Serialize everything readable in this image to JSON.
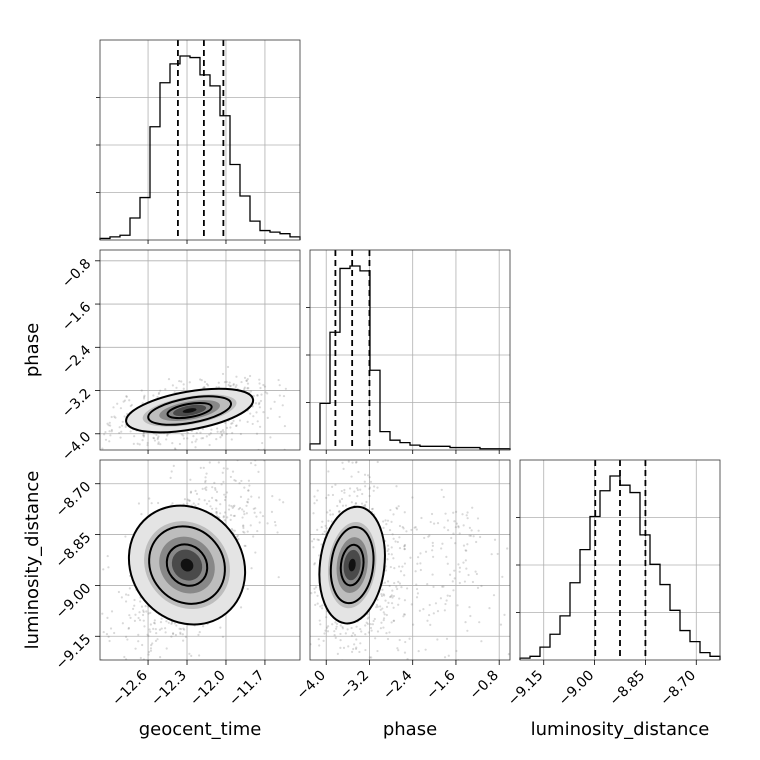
{
  "chart_data": {
    "type": "corner",
    "parameters": [
      "geocent_time",
      "phase",
      "luminosity_distance"
    ],
    "axes": {
      "geocent_time": {
        "label": "geocent_time",
        "range": [
          -12.97,
          -11.43
        ],
        "ticks": [
          -12.6,
          -12.3,
          -12.0,
          -11.7
        ],
        "tick_labels": [
          "−12.6",
          "−12.3",
          "−12.0",
          "−11.7"
        ]
      },
      "phase": {
        "label": "phase",
        "range": [
          -4.3,
          -0.6
        ],
        "ticks": [
          -4.0,
          -3.2,
          -2.4,
          -1.6,
          -0.8
        ],
        "tick_labels": [
          "−4.0",
          "−3.2",
          "−2.4",
          "−1.6",
          "−0.8"
        ]
      },
      "luminosity_distance": {
        "label": "luminosity_distance",
        "range": [
          -9.22,
          -8.63
        ],
        "ticks": [
          -9.15,
          -9.0,
          -8.85,
          -8.7
        ],
        "tick_labels": [
          "−9.15",
          "−9.00",
          "−8.85",
          "−8.70"
        ]
      }
    },
    "histograms": {
      "geocent_time": {
        "counts": [
          1,
          2,
          3,
          14,
          27,
          72,
          100,
          112,
          117,
          116,
          105,
          98,
          79,
          48,
          28,
          12,
          6,
          5,
          4,
          2
        ],
        "quantiles": [
          -12.37,
          -12.17,
          -12.02
        ]
      },
      "phase": {
        "counts": [
          5,
          38,
          96,
          148,
          150,
          146,
          65,
          15,
          8,
          6,
          4,
          3,
          3,
          3,
          2,
          2,
          2,
          1,
          1,
          1
        ],
        "quantiles": [
          -3.83,
          -3.52,
          -3.2
        ]
      },
      "luminosity_distance": {
        "counts": [
          1,
          2,
          7,
          14,
          24,
          42,
          60,
          78,
          92,
          100,
          95,
          91,
          68,
          52,
          41,
          27,
          16,
          10,
          4,
          2
        ],
        "quantiles": [
          -8.998,
          -8.925,
          -8.85
        ]
      }
    },
    "joint": [
      {
        "x": "geocent_time",
        "y": "phase",
        "peak": [
          -12.28,
          -3.57
        ]
      },
      {
        "x": "geocent_time",
        "y": "luminosity_distance",
        "peak": [
          -12.3,
          -8.94
        ]
      },
      {
        "x": "phase",
        "y": "luminosity_distance",
        "peak": [
          -3.52,
          -8.94
        ]
      }
    ]
  }
}
